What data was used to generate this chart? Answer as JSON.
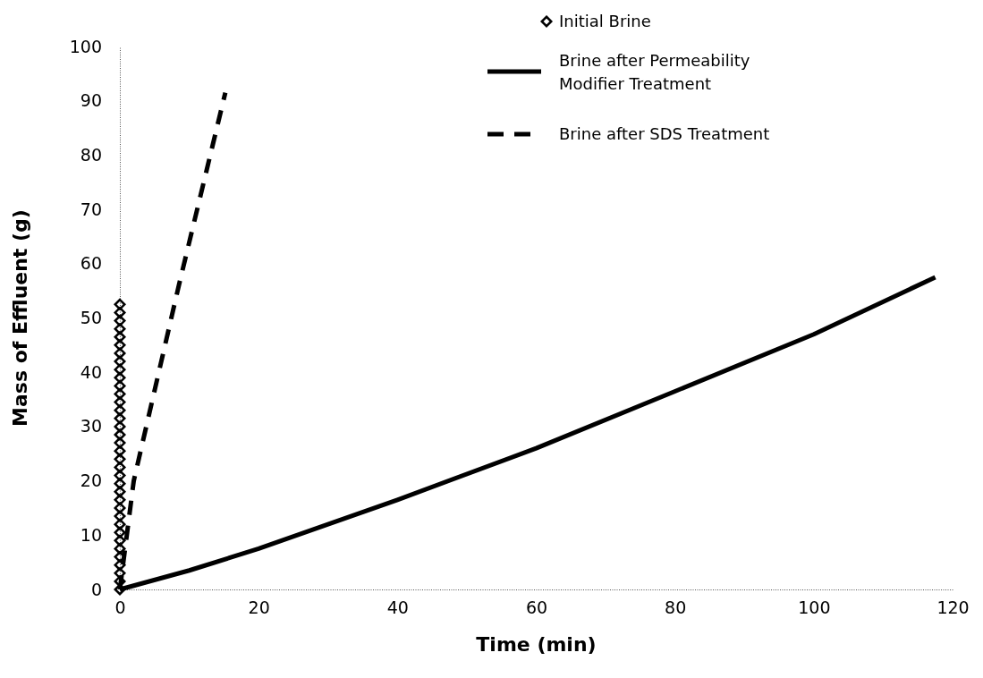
{
  "chart_data": {
    "type": "line",
    "xlabel": "Time (min)",
    "ylabel": "Mass of Effluent (g)",
    "xlim": [
      0,
      120
    ],
    "xticks": [
      0,
      20,
      40,
      60,
      80,
      100,
      120
    ],
    "ylim": [
      0,
      100
    ],
    "yticks": [
      0,
      10,
      20,
      30,
      40,
      50,
      60,
      70,
      80,
      90,
      100
    ],
    "grid": false,
    "legend": "top right",
    "series": [
      {
        "name": "Initial Brine",
        "type": "scatter",
        "marker": "diamond",
        "color": "#000000",
        "x": [
          0,
          0,
          0,
          0,
          0,
          0,
          0,
          0,
          0,
          0,
          0,
          0,
          0,
          0,
          0,
          0,
          0,
          0,
          0,
          0,
          0,
          0,
          0,
          0,
          0,
          0,
          0,
          0,
          0,
          0,
          0,
          0,
          0,
          0,
          0,
          0
        ],
        "values": [
          0,
          1.5,
          3,
          4.5,
          6,
          7.5,
          9,
          10.5,
          12,
          13.5,
          15,
          16.5,
          18,
          19.5,
          21,
          22.5,
          24,
          25.5,
          27,
          28.5,
          30,
          31.5,
          33,
          34.5,
          36,
          37.5,
          39,
          40.5,
          42,
          43.5,
          45,
          46.5,
          48,
          49.5,
          51,
          52.5
        ]
      },
      {
        "name": "Brine after Permeability Modifier Treatment",
        "type": "line",
        "line_style": "solid",
        "color": "#000000",
        "x": [
          0,
          10,
          20,
          40,
          60,
          80,
          100,
          117.5
        ],
        "values": [
          0,
          3.5,
          7.5,
          16.5,
          26,
          36.5,
          47,
          57.5
        ]
      },
      {
        "name": "Brine after SDS Treatment",
        "type": "line",
        "line_style": "dashed",
        "color": "#000000",
        "x": [
          0,
          2,
          8.5,
          15.2
        ],
        "values": [
          0,
          20,
          56,
          91.5
        ]
      }
    ]
  }
}
